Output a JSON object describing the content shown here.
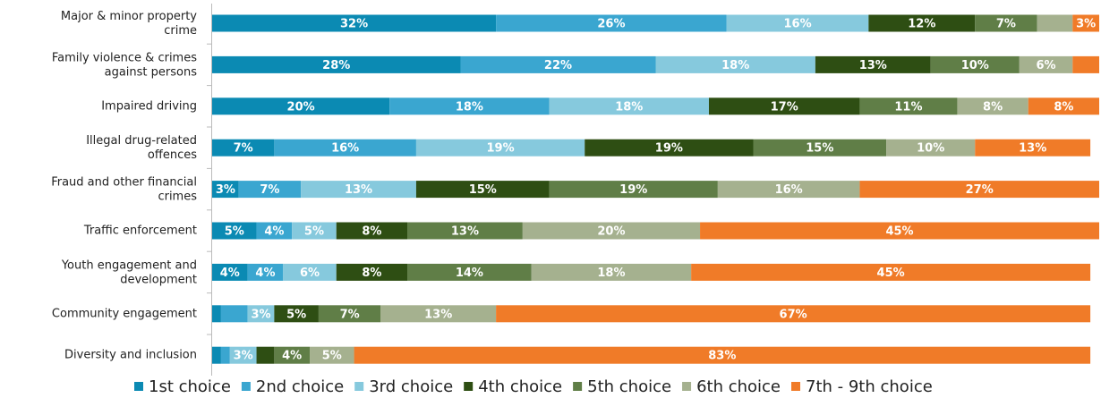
{
  "chart_data": {
    "type": "stacked-bar-horizontal",
    "categories": [
      "Major & minor property crime",
      "Family violence & crimes against persons",
      "Impaired driving",
      "Illegal drug-related offences",
      "Fraud and other financial crimes",
      "Traffic enforcement",
      "Youth engagement and development",
      "Community engagement",
      "Diversity and inclusion"
    ],
    "xlim": [
      0,
      100
    ],
    "series": [
      {
        "name": "1st choice",
        "color": "#0b8ab3",
        "values": [
          32,
          28,
          20,
          7,
          3,
          5,
          4,
          1,
          1
        ],
        "value_labels": [
          "32%",
          "28%",
          "20%",
          "7%",
          "3%",
          "5%",
          "4%",
          null,
          null
        ]
      },
      {
        "name": "2nd choice",
        "color": "#3aa6d0",
        "values": [
          26,
          22,
          18,
          16,
          7,
          4,
          4,
          3,
          1
        ],
        "value_labels": [
          "26%",
          "22%",
          "18%",
          "16%",
          "7%",
          "4%",
          "4%",
          null,
          null
        ]
      },
      {
        "name": "3rd choice",
        "color": "#86c9dd",
        "values": [
          16,
          18,
          18,
          19,
          13,
          5,
          6,
          3,
          3
        ],
        "value_labels": [
          "16%",
          "18%",
          "18%",
          "19%",
          "13%",
          "5%",
          "6%",
          "3%",
          "3%"
        ]
      },
      {
        "name": "4th choice",
        "color": "#2e4e13",
        "values": [
          12,
          13,
          17,
          19,
          15,
          8,
          8,
          5,
          2
        ],
        "value_labels": [
          "12%",
          "13%",
          "17%",
          "19%",
          "15%",
          "8%",
          "8%",
          "5%",
          null
        ]
      },
      {
        "name": "5th choice",
        "color": "#607e47",
        "values": [
          7,
          10,
          11,
          15,
          19,
          13,
          14,
          7,
          4
        ],
        "value_labels": [
          "7%",
          "10%",
          "11%",
          "15%",
          "19%",
          "13%",
          "14%",
          "7%",
          "4%"
        ]
      },
      {
        "name": "6th choice",
        "color": "#a5b18f",
        "values": [
          4,
          6,
          8,
          10,
          16,
          20,
          18,
          13,
          5
        ],
        "value_labels": [
          null,
          "6%",
          "8%",
          "10%",
          "16%",
          "20%",
          "18%",
          "13%",
          "5%"
        ]
      },
      {
        "name": "7th - 9th choice",
        "color": "#f07b28",
        "values": [
          3,
          3,
          8,
          13,
          27,
          45,
          45,
          67,
          83
        ],
        "value_labels": [
          "3%",
          null,
          "8%",
          "13%",
          "27%",
          "45%",
          "45%",
          "67%",
          "83%"
        ]
      }
    ]
  }
}
